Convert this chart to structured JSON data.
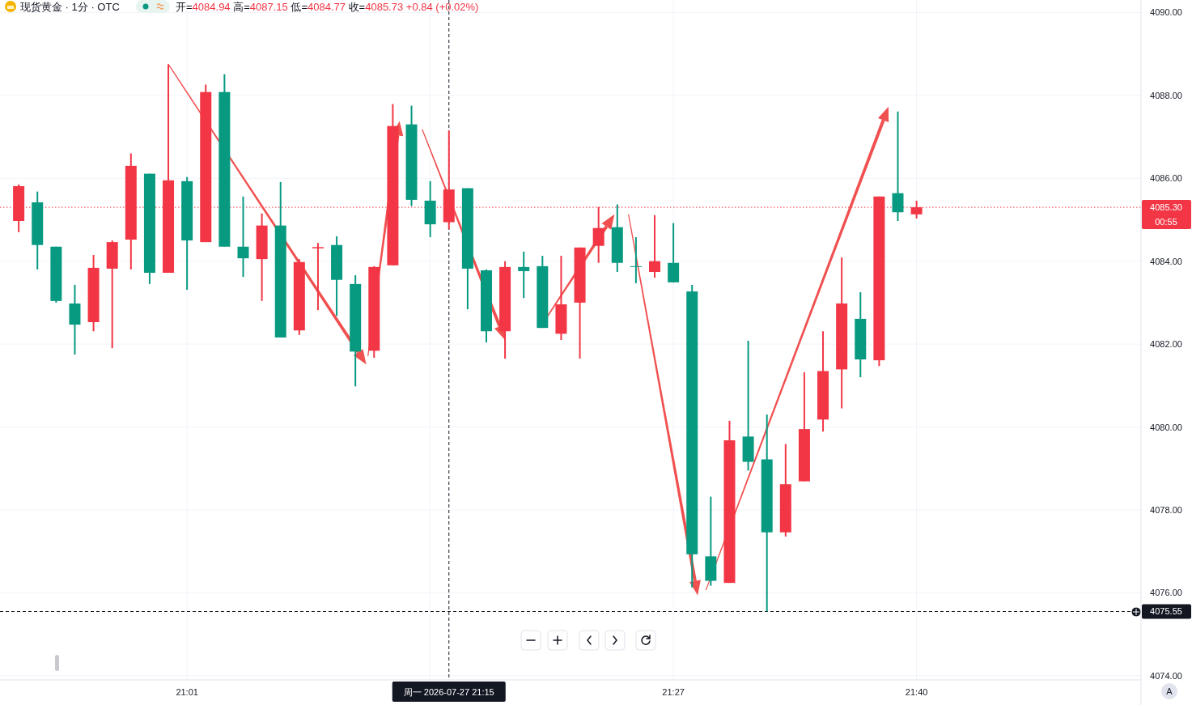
{
  "chart_data": {
    "type": "candlestick",
    "title": "现货黄金 · 1分 · OTC",
    "subtitle": "开=4084.94 高=4087.15 低=4084.77 收=4085.73 +0.84 (+0.02%)",
    "x": [
      "2026-07-27T20:52",
      "2026-07-27T20:53",
      "2026-07-27T20:54",
      "2026-07-27T20:55",
      "2026-07-27T20:56",
      "2026-07-27T20:57",
      "2026-07-27T20:58",
      "2026-07-27T20:59",
      "2026-07-27T21:00",
      "2026-07-27T21:01",
      "2026-07-27T21:02",
      "2026-07-27T21:03",
      "2026-07-27T21:04",
      "2026-07-27T21:05",
      "2026-07-27T21:06",
      "2026-07-27T21:07",
      "2026-07-27T21:08",
      "2026-07-27T21:09",
      "2026-07-27T21:10",
      "2026-07-27T21:11",
      "2026-07-27T21:12",
      "2026-07-27T21:13",
      "2026-07-27T21:14",
      "2026-07-27T21:15",
      "2026-07-27T21:16",
      "2026-07-27T21:17",
      "2026-07-27T21:18",
      "2026-07-27T21:19",
      "2026-07-27T21:20",
      "2026-07-27T21:21",
      "2026-07-27T21:22",
      "2026-07-27T21:23",
      "2026-07-27T21:24",
      "2026-07-27T21:25",
      "2026-07-27T21:26",
      "2026-07-27T21:27",
      "2026-07-27T21:28",
      "2026-07-27T21:29",
      "2026-07-27T21:30",
      "2026-07-27T21:31",
      "2026-07-27T21:32",
      "2026-07-27T21:33",
      "2026-07-27T21:34",
      "2026-07-27T21:35",
      "2026-07-27T21:36",
      "2026-07-27T21:37",
      "2026-07-27T21:38",
      "2026-07-27T21:39",
      "2026-07-27T21:40"
    ],
    "ohlc": [
      [
        4084.97,
        4085.85,
        4084.7,
        4085.81
      ],
      [
        4085.42,
        4085.68,
        4083.8,
        4084.39
      ],
      [
        4084.35,
        4084.35,
        4083.0,
        4083.04
      ],
      [
        4082.98,
        4083.43,
        4081.75,
        4082.47
      ],
      [
        4082.53,
        4084.15,
        4082.31,
        4083.84
      ],
      [
        4083.82,
        4084.5,
        4081.9,
        4084.46
      ],
      [
        4084.52,
        4086.6,
        4083.8,
        4086.3
      ],
      [
        4086.11,
        4086.11,
        4083.45,
        4083.72
      ],
      [
        4083.72,
        4088.75,
        4083.72,
        4085.95
      ],
      [
        4085.93,
        4086.03,
        4083.31,
        4084.5
      ],
      [
        4084.46,
        4088.26,
        4084.46,
        4088.08
      ],
      [
        4088.08,
        4088.51,
        4084.35,
        4084.35
      ],
      [
        4084.35,
        4085.56,
        4083.62,
        4084.07
      ],
      [
        4084.05,
        4085.15,
        4083.04,
        4084.86
      ],
      [
        4084.86,
        4085.91,
        4082.16,
        4082.16
      ],
      [
        4082.33,
        4084.05,
        4082.22,
        4083.98
      ],
      [
        4084.31,
        4084.44,
        4082.82,
        4084.34
      ],
      [
        4084.39,
        4084.6,
        4082.68,
        4083.55
      ],
      [
        4083.45,
        4083.66,
        4080.98,
        4081.82
      ],
      [
        4081.84,
        4083.88,
        4081.67,
        4083.86
      ],
      [
        4083.9,
        4087.79,
        4083.9,
        4087.26
      ],
      [
        4087.3,
        4087.75,
        4085.33,
        4085.48
      ],
      [
        4085.46,
        4085.93,
        4084.58,
        4084.89
      ],
      [
        4084.94,
        4087.15,
        4084.77,
        4085.73
      ],
      [
        4085.76,
        4085.76,
        4082.84,
        4083.82
      ],
      [
        4083.78,
        4083.8,
        4082.04,
        4082.31
      ],
      [
        4082.31,
        4084.0,
        4081.65,
        4083.86
      ],
      [
        4083.86,
        4084.23,
        4083.11,
        4083.76
      ],
      [
        4083.88,
        4084.13,
        4082.39,
        4082.39
      ],
      [
        4082.25,
        4084.13,
        4082.1,
        4082.96
      ],
      [
        4083.0,
        4084.33,
        4081.65,
        4084.33
      ],
      [
        4084.37,
        4085.31,
        4083.96,
        4084.8
      ],
      [
        4084.82,
        4085.37,
        4083.74,
        4083.96
      ],
      [
        4083.88,
        4084.58,
        4083.47,
        4083.87
      ],
      [
        4083.74,
        4085.11,
        4083.6,
        4084.0
      ],
      [
        4083.96,
        4084.92,
        4083.49,
        4083.49
      ],
      [
        4083.27,
        4083.43,
        4076.13,
        4076.93
      ],
      [
        4076.88,
        4078.32,
        4076.17,
        4076.29
      ],
      [
        4076.24,
        4080.15,
        4076.24,
        4079.68
      ],
      [
        4079.77,
        4082.08,
        4078.95,
        4079.16
      ],
      [
        4079.22,
        4080.3,
        4075.55,
        4077.46
      ],
      [
        4077.46,
        4079.59,
        4077.36,
        4078.62
      ],
      [
        4078.69,
        4081.32,
        4078.69,
        4079.95
      ],
      [
        4080.18,
        4082.31,
        4079.89,
        4081.35
      ],
      [
        4081.39,
        4084.09,
        4080.45,
        4082.98
      ],
      [
        4082.61,
        4083.25,
        4081.2,
        4081.63
      ],
      [
        4081.61,
        4085.56,
        4081.47,
        4085.56
      ],
      [
        4085.64,
        4087.61,
        4084.97,
        4085.18
      ],
      [
        4085.13,
        4085.46,
        4085.03,
        4085.3
      ]
    ],
    "colors": [
      "#f23645",
      "#089981",
      "#089981",
      "#089981",
      "#f23645",
      "#f23645",
      "#f23645",
      "#089981",
      "#f23645",
      "#089981",
      "#f23645",
      "#089981",
      "#089981",
      "#f23645",
      "#089981",
      "#f23645",
      "#f23645",
      "#089981",
      "#089981",
      "#f23645",
      "#f23645",
      "#089981",
      "#089981",
      "#f23645",
      "#089981",
      "#089981",
      "#f23645",
      "#089981",
      "#089981",
      "#f23645",
      "#f23645",
      "#f23645",
      "#089981",
      "#089981",
      "#f23645",
      "#089981",
      "#089981",
      "#089981",
      "#f23645",
      "#089981",
      "#089981",
      "#f23645",
      "#f23645",
      "#f23645",
      "#f23645",
      "#089981",
      "#f23645",
      "#089981",
      "#f23645"
    ],
    "xlim": [
      "2026-07-27T20:51",
      "2026-07-27T21:52"
    ],
    "xticks": [
      {
        "value": "2026-07-27T21:01",
        "label": "21:01"
      },
      {
        "value": "2026-07-27T21:14",
        "label": null
      },
      {
        "value": "2026-07-27T21:27",
        "label": "21:27"
      },
      {
        "value": "2026-07-27T21:40",
        "label": "21:40"
      }
    ],
    "ylim": [
      4073.9,
      4090.3
    ],
    "yticks": [
      {
        "value": 4074,
        "label": "4074.00"
      },
      {
        "value": 4076,
        "label": "4076.00"
      },
      {
        "value": 4078,
        "label": "4078.00"
      },
      {
        "value": 4080,
        "label": "4080.00"
      },
      {
        "value": 4082,
        "label": "4082.00"
      },
      {
        "value": 4084,
        "label": "4084.00"
      },
      {
        "value": 4086,
        "label": "4086.00"
      },
      {
        "value": 4088,
        "label": "4088.00"
      },
      {
        "value": 4090,
        "label": "4090.00"
      }
    ],
    "grid": true,
    "ref_lines": [
      {
        "axis": "y",
        "value": 4085.3,
        "label": "4085.30",
        "color": "#f23645",
        "line_style": "dotted"
      },
      {
        "axis": "y",
        "value": 4075.55,
        "label": "4075.55",
        "color": "#131722",
        "line_style": "dashed"
      },
      {
        "axis": "x",
        "value": "2026-07-27T21:15",
        "label": "周一 2026-07-27 21:15",
        "color": "#131722",
        "line_style": "dashed"
      }
    ],
    "annotations": [
      "00:55",
      "A"
    ]
  }
}
